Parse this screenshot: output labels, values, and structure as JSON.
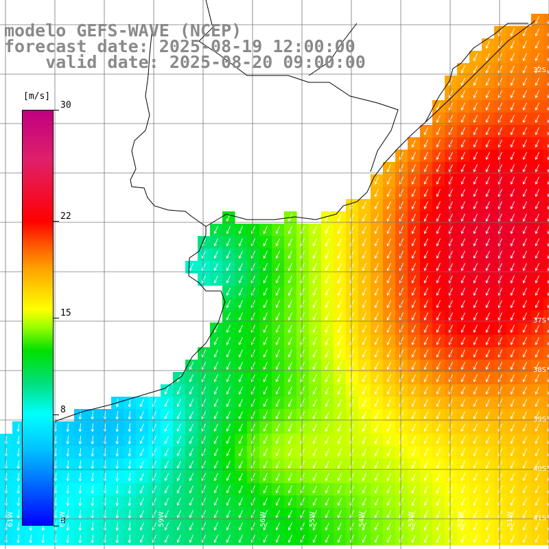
{
  "title": {
    "line1": "modelo GEFS-WAVE (NCEP)",
    "line2": "forecast date: 2025-08-19 12:00:00",
    "line3": "    valid date: 2025-08-20 09:00:00"
  },
  "colorbar": {
    "unit": "[m/s]",
    "ticks": [
      {
        "label": "30",
        "value": 30
      },
      {
        "label": "22",
        "value": 22
      },
      {
        "label": "15",
        "value": 15
      },
      {
        "label": "8",
        "value": 8
      },
      {
        "label": "0",
        "value": 0
      }
    ],
    "range": [
      0,
      30
    ],
    "colors": [
      "#0000ff",
      "#00ffff",
      "#00e000",
      "#ffff00",
      "#ff0000",
      "#c00080"
    ]
  },
  "axes": {
    "lat_labels": [
      "32S",
      "37S",
      "38S",
      "39S",
      "40S",
      "41S"
    ],
    "lon_labels": [
      "61W",
      "60W",
      "59W",
      "56W",
      "55W",
      "54W",
      "53W",
      "52W",
      "51W"
    ]
  },
  "map": {
    "field": "wind speed",
    "land_color": "#ffffff",
    "arrow_color": "#ffffff",
    "coast_color": "#000000"
  }
}
